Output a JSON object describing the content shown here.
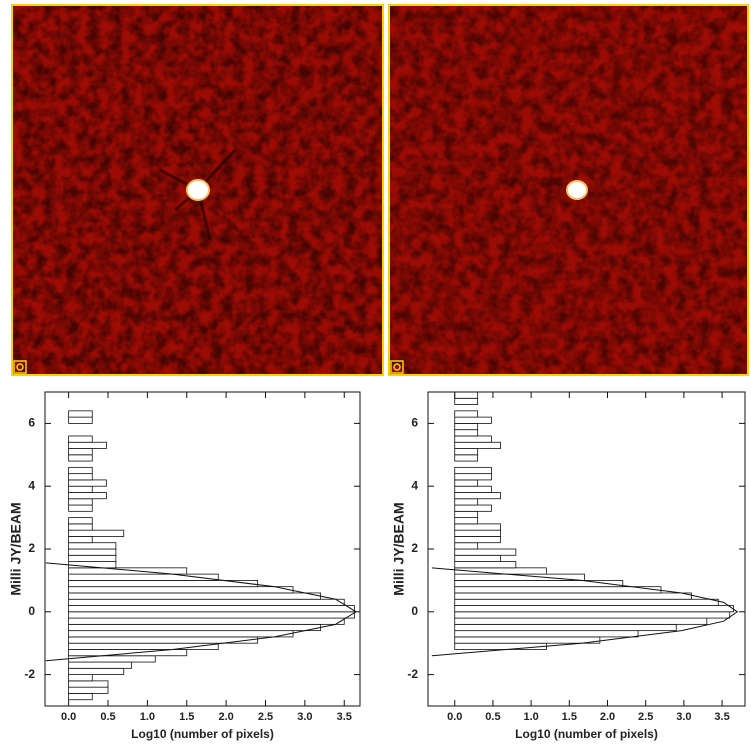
{
  "chart_data": [
    {
      "type": "histogram",
      "orientation": "horizontal",
      "ylabel": "Milli JY/BEAM",
      "xlabel": "Log10 (number of pixels)",
      "ylim": [
        -3,
        7
      ],
      "yticks": [
        -2,
        0,
        2,
        4,
        6
      ],
      "xlim": [
        -0.3,
        3.7
      ],
      "xticks": [
        {
          "value": 0,
          "label": "0.0"
        },
        {
          "value": 0.5,
          "label": "0.5"
        },
        {
          "value": 1,
          "label": "1.0"
        },
        {
          "value": 1.5,
          "label": "1.5"
        },
        {
          "value": 2,
          "label": "2.0"
        },
        {
          "value": 2.5,
          "label": "2.5"
        },
        {
          "value": 3,
          "label": "3.0"
        },
        {
          "value": 3.5,
          "label": "3.5"
        }
      ],
      "bins": [
        -2.8,
        -2.6,
        -2.4,
        -2.2,
        -2.0,
        -1.8,
        -1.6,
        -1.4,
        -1.2,
        -1.0,
        -0.8,
        -0.6,
        -0.4,
        -0.2,
        0.0,
        0.2,
        0.4,
        0.6,
        0.8,
        1.0,
        1.2,
        1.4,
        1.6,
        1.8,
        2.0,
        2.2,
        2.4,
        2.6,
        2.8,
        3.0,
        3.2,
        3.4,
        3.6,
        3.8,
        4.0,
        4.2,
        4.4,
        4.6,
        4.8,
        5.0,
        5.2,
        5.4,
        5.6,
        5.8,
        6.0,
        6.2,
        6.4,
        6.6,
        6.8,
        7.0
      ],
      "values": [
        0.3,
        0.5,
        0.5,
        0.3,
        0.7,
        0.8,
        1.1,
        1.5,
        1.9,
        2.4,
        2.85,
        3.2,
        3.5,
        3.63,
        3.63,
        3.5,
        3.2,
        2.85,
        2.4,
        1.9,
        1.5,
        0.6,
        0.6,
        0.6,
        0.6,
        0.3,
        0.7,
        0.3,
        0.3,
        0,
        0.3,
        0.3,
        0.48,
        0.3,
        0.48,
        0.3,
        0.3,
        0,
        0.3,
        0.3,
        0.48,
        0.3,
        0,
        0,
        0.3,
        0.3,
        0,
        0,
        0
      ],
      "fit": {
        "y": [
          -1.56,
          -1.2,
          -0.8,
          -0.4,
          0,
          0.4,
          0.8,
          1.2,
          1.56
        ],
        "values": [
          -0.29,
          1.32,
          2.61,
          3.39,
          3.65,
          3.39,
          2.61,
          1.32,
          -0.29
        ]
      }
    },
    {
      "type": "histogram",
      "orientation": "horizontal",
      "ylabel": "Milli JY/BEAM",
      "xlabel": "Log10 (number of pixels)",
      "ylim": [
        -3,
        7
      ],
      "yticks": [
        -2,
        0,
        2,
        4,
        6
      ],
      "xlim": [
        -0.35,
        3.8
      ],
      "xticks": [
        {
          "value": 0,
          "label": "0.0"
        },
        {
          "value": 0.5,
          "label": "0.5"
        },
        {
          "value": 1,
          "label": "1.0"
        },
        {
          "value": 1.5,
          "label": "1.5"
        },
        {
          "value": 2,
          "label": "2.0"
        },
        {
          "value": 2.5,
          "label": "2.5"
        },
        {
          "value": 3,
          "label": "3.0"
        },
        {
          "value": 3.5,
          "label": "3.5"
        }
      ],
      "bins": [
        -1.2,
        -1.0,
        -0.8,
        -0.6,
        -0.4,
        -0.2,
        0.0,
        0.2,
        0.4,
        0.6,
        0.8,
        1.0,
        1.2,
        1.4,
        1.6,
        1.8,
        2.0,
        2.2,
        2.4,
        2.6,
        2.8,
        3.0,
        3.2,
        3.4,
        3.6,
        3.8,
        4.0,
        4.2,
        4.4,
        4.6,
        4.8,
        5.0,
        5.2,
        5.4,
        5.6,
        5.8,
        6.0,
        6.2,
        6.4,
        6.6,
        6.8,
        7.0
      ],
      "values": [
        1.2,
        1.9,
        2.4,
        2.9,
        3.3,
        3.6,
        3.65,
        3.45,
        3.1,
        2.7,
        2.2,
        1.7,
        1.2,
        0.8,
        0.6,
        0.8,
        0.3,
        0.6,
        0.6,
        0.6,
        0.3,
        0.3,
        0.48,
        0.3,
        0.6,
        0.48,
        0.3,
        0.48,
        0.48,
        0,
        0.3,
        0.3,
        0.6,
        0.48,
        0.3,
        0.3,
        0.48,
        0.3,
        0,
        0.3,
        0.3
      ],
      "fit": {
        "y": [
          -1.4,
          -1.0,
          -0.6,
          -0.3,
          0,
          0.3,
          0.6,
          1.0,
          1.4
        ],
        "values": [
          -0.3,
          1.66,
          2.97,
          3.52,
          3.7,
          3.52,
          2.97,
          1.66,
          -0.3
        ]
      }
    }
  ]
}
